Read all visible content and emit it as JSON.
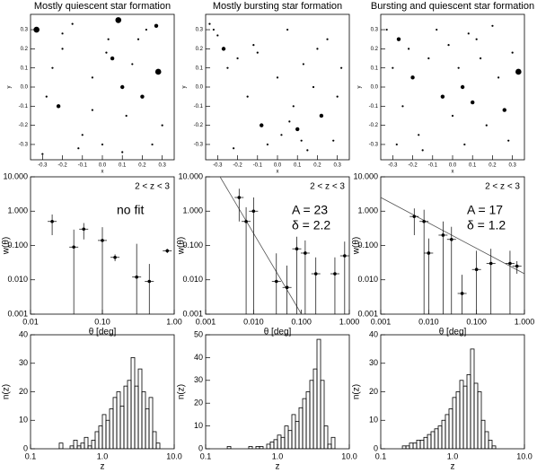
{
  "chart_data": [
    {
      "type": "scatter",
      "title": "Mostly quiescent star formation",
      "xlabel": "x",
      "ylabel": "y",
      "x": [
        -0.33,
        -0.3,
        -0.25,
        -0.22,
        -0.2,
        -0.15,
        -0.1,
        -0.05,
        0.0,
        0.03,
        0.05,
        0.08,
        0.1,
        0.12,
        0.15,
        0.2,
        0.22,
        0.25,
        0.28,
        0.3,
        -0.28,
        -0.12,
        0.02,
        0.18,
        -0.05,
        0.1,
        0.27,
        -0.2
      ],
      "values": [
        0.3,
        -0.35,
        0.1,
        -0.1,
        0.2,
        0.33,
        -0.25,
        0.05,
        -0.3,
        0.25,
        0.15,
        0.35,
        0.0,
        -0.15,
        0.12,
        -0.05,
        0.3,
        -0.3,
        0.08,
        -0.2,
        -0.05,
        -0.32,
        0.18,
        0.25,
        -0.12,
        -0.34,
        0.32,
        0.28
      ],
      "sizes": [
        3,
        1,
        1,
        2,
        1,
        1,
        1,
        1,
        1,
        1,
        2,
        3,
        2,
        1,
        1,
        2,
        1,
        1,
        3,
        1,
        1,
        1,
        1,
        1,
        1,
        1,
        2,
        1
      ],
      "xlim": [
        -0.36,
        0.36
      ],
      "ylim": [
        -0.38,
        0.38
      ],
      "xticks": [
        -0.3,
        -0.2,
        -0.1,
        {
          "value": 0,
          "label": "0.0"
        },
        0.1,
        0.2,
        0.3
      ],
      "yticks": [
        -0.3,
        -0.2,
        -0.1,
        {
          "value": 0,
          "label": "0.0"
        },
        0.1,
        0.2,
        0.3
      ]
    },
    {
      "type": "scatter",
      "title": "Mostly bursting star formation",
      "xlabel": "x",
      "ylabel": "y",
      "x": [
        -0.34,
        -0.32,
        -0.3,
        -0.27,
        -0.25,
        -0.2,
        -0.15,
        -0.12,
        -0.08,
        -0.05,
        0.0,
        0.02,
        0.05,
        0.08,
        0.1,
        0.13,
        0.15,
        0.18,
        0.2,
        0.22,
        0.25,
        0.28,
        0.3,
        0.32,
        -0.22,
        0.06,
        0.12,
        -0.1
      ],
      "values": [
        0.33,
        0.3,
        0.27,
        0.2,
        0.1,
        0.15,
        -0.05,
        0.22,
        -0.2,
        -0.3,
        0.05,
        -0.25,
        0.3,
        -0.1,
        -0.22,
        0.12,
        -0.33,
        0.0,
        0.2,
        -0.15,
        0.25,
        -0.28,
        -0.05,
        0.1,
        -0.32,
        -0.18,
        -0.28,
        0.18
      ],
      "sizes": [
        1,
        1,
        1,
        2,
        1,
        1,
        1,
        1,
        2,
        1,
        1,
        1,
        1,
        1,
        2,
        1,
        1,
        1,
        1,
        2,
        1,
        1,
        1,
        1,
        1,
        1,
        1,
        1
      ],
      "xlim": [
        -0.36,
        0.36
      ],
      "ylim": [
        -0.38,
        0.38
      ],
      "xticks": [
        -0.3,
        -0.2,
        -0.1,
        {
          "value": 0,
          "label": "0.0"
        },
        0.1,
        0.2,
        0.3
      ],
      "yticks": [
        -0.3,
        -0.2,
        -0.1,
        {
          "value": 0,
          "label": "0.0"
        },
        0.1,
        0.2,
        0.3
      ]
    },
    {
      "type": "scatter",
      "title": "Bursting and quiescent star formation",
      "xlabel": "x",
      "ylabel": "y",
      "x": [
        -0.33,
        -0.3,
        -0.27,
        -0.25,
        -0.22,
        -0.2,
        -0.17,
        -0.12,
        -0.08,
        -0.05,
        -0.02,
        0.0,
        0.03,
        0.06,
        0.08,
        0.1,
        0.14,
        0.17,
        0.2,
        0.23,
        0.26,
        0.3,
        0.33,
        -0.15,
        0.12,
        0.28,
        -0.28,
        0.05
      ],
      "values": [
        0.3,
        0.1,
        0.25,
        -0.1,
        0.2,
        0.05,
        -0.25,
        0.15,
        0.3,
        -0.05,
        0.22,
        -0.15,
        0.1,
        -0.3,
        0.28,
        -0.08,
        0.15,
        -0.2,
        0.32,
        0.05,
        -0.12,
        0.18,
        0.08,
        -0.33,
        0.25,
        -0.28,
        -0.3,
        0.0
      ],
      "sizes": [
        1,
        1,
        2,
        1,
        1,
        2,
        1,
        1,
        1,
        2,
        1,
        1,
        1,
        1,
        1,
        2,
        1,
        1,
        1,
        1,
        2,
        1,
        3,
        1,
        1,
        1,
        1,
        2
      ],
      "xlim": [
        -0.36,
        0.36
      ],
      "ylim": [
        -0.38,
        0.38
      ],
      "xticks": [
        -0.3,
        -0.2,
        -0.1,
        {
          "value": 0,
          "label": "0.0"
        },
        0.1,
        0.2,
        0.3
      ],
      "yticks": [
        -0.3,
        -0.2,
        -0.1,
        {
          "value": 0,
          "label": "0.0"
        },
        0.1,
        0.2,
        0.3
      ]
    },
    {
      "type": "errorbar",
      "xlabel": "θ  [deg]",
      "ylabel": "w(θ)",
      "log": true,
      "annotations": [
        "2 < z < 3",
        "no fit"
      ],
      "x": [
        0.02,
        0.04,
        0.055,
        0.1,
        0.15,
        0.3,
        0.45,
        0.8
      ],
      "values": [
        0.5,
        0.09,
        0.3,
        0.14,
        0.045,
        0.012,
        0.009,
        0.07
      ],
      "errors": [
        0.3,
        0.2,
        0.15,
        0.2,
        0.01,
        0.1,
        0.02,
        0.01
      ],
      "xlim": [
        0.01,
        1
      ],
      "ylim": [
        0.001,
        10
      ],
      "xticks": [
        0.01,
        {
          "value": 0.1,
          "label": "0.10"
        },
        {
          "value": 1,
          "label": "1.00"
        }
      ],
      "yticks": [
        {
          "value": 0.001,
          "label": "0.001"
        },
        {
          "value": 0.01,
          "label": "0.010"
        },
        {
          "value": 0.1,
          "label": "0.100"
        },
        {
          "value": 1,
          "label": "1.000"
        },
        {
          "value": 10,
          "label": "10.000"
        }
      ]
    },
    {
      "type": "errorbar",
      "xlabel": "θ  [deg]",
      "ylabel": "w(θ)",
      "log": true,
      "annotations": [
        "2 < z < 3",
        "A = 23",
        "δ = 2.2"
      ],
      "x": [
        0.005,
        0.007,
        0.01,
        0.03,
        0.05,
        0.08,
        0.12,
        0.2,
        0.5,
        0.8
      ],
      "values": [
        2.5,
        0.5,
        1.0,
        0.009,
        0.006,
        0.08,
        0.06,
        0.015,
        0.015,
        0.05
      ],
      "errors": [
        2,
        0.8,
        1.5,
        0.05,
        0.02,
        0.1,
        0.08,
        0.03,
        0.03,
        0.08
      ],
      "fit": {
        "x": [
          0.002,
          0.1
        ],
        "values": [
          10,
          0.001
        ]
      },
      "xlim": [
        0.001,
        1
      ],
      "ylim": [
        0.001,
        10
      ],
      "xticks": [
        {
          "value": 0.001,
          "label": "0.001"
        },
        {
          "value": 0.01,
          "label": "0.010"
        },
        {
          "value": 0.1,
          "label": "0.100"
        },
        {
          "value": 1,
          "label": "1.000"
        }
      ],
      "yticks": [
        {
          "value": 0.001,
          "label": "0.001"
        },
        {
          "value": 0.01,
          "label": "0.010"
        },
        {
          "value": 0.1,
          "label": "0.100"
        },
        {
          "value": 1,
          "label": "1.000"
        },
        {
          "value": 10,
          "label": "10.000"
        }
      ]
    },
    {
      "type": "errorbar",
      "xlabel": "θ  [deg]",
      "ylabel": "w(θ)",
      "log": true,
      "annotations": [
        "2 < z < 3",
        "A = 17",
        "δ = 1.2"
      ],
      "x": [
        0.005,
        0.008,
        0.01,
        0.02,
        0.03,
        0.05,
        0.1,
        0.2,
        0.5,
        0.7
      ],
      "values": [
        0.7,
        0.5,
        0.06,
        0.2,
        0.15,
        0.004,
        0.02,
        0.03,
        0.03,
        0.025
      ],
      "errors": [
        0.5,
        0.6,
        0.1,
        0.3,
        0.2,
        0.01,
        0.05,
        0.05,
        0.04,
        0.01
      ],
      "fit": {
        "x": [
          0.001,
          1
        ],
        "values": [
          2.5,
          0.015
        ]
      },
      "xlim": [
        0.001,
        1
      ],
      "ylim": [
        0.001,
        10
      ],
      "xticks": [
        {
          "value": 0.001,
          "label": "0.001"
        },
        {
          "value": 0.01,
          "label": "0.010"
        },
        {
          "value": 0.1,
          "label": "0.100"
        },
        {
          "value": 1,
          "label": "1.000"
        }
      ],
      "yticks": [
        {
          "value": 0.001,
          "label": "0.001"
        },
        {
          "value": 0.01,
          "label": "0.010"
        },
        {
          "value": 0.1,
          "label": "0.100"
        },
        {
          "value": 1,
          "label": "1.000"
        },
        {
          "value": 10,
          "label": "10.000"
        }
      ]
    },
    {
      "type": "histogram",
      "xlabel": "z",
      "ylabel": "n(z)",
      "log": true,
      "bins": [
        0.2,
        0.224,
        0.251,
        0.282,
        0.316,
        0.355,
        0.398,
        0.447,
        0.501,
        0.562,
        0.631,
        0.708,
        0.794,
        0.891,
        1.0,
        1.122,
        1.259,
        1.413,
        1.585,
        1.778,
        1.995,
        2.239,
        2.512,
        2.818,
        3.162,
        3.548,
        3.981,
        4.467,
        5.012,
        5.623,
        6.31,
        7.079,
        7.943
      ],
      "values": [
        0,
        0,
        2,
        0,
        0,
        1,
        3,
        1,
        2,
        4,
        1,
        3,
        6,
        8,
        12,
        10,
        14,
        18,
        20,
        15,
        22,
        24,
        32,
        22,
        28,
        20,
        14,
        18,
        6,
        2,
        0,
        0
      ],
      "xlim": [
        0.1,
        10
      ],
      "ylim": [
        0,
        40
      ],
      "xticks": [
        0.1,
        {
          "value": 1,
          "label": "1.0"
        },
        {
          "value": 10,
          "label": "10.0"
        }
      ],
      "yticks": [
        0,
        10,
        20,
        30,
        40
      ]
    },
    {
      "type": "histogram",
      "xlabel": "z",
      "ylabel": "n(z)",
      "log": true,
      "bins": [
        0.2,
        0.224,
        0.251,
        0.282,
        0.316,
        0.355,
        0.398,
        0.447,
        0.501,
        0.562,
        0.631,
        0.708,
        0.794,
        0.891,
        1.0,
        1.122,
        1.259,
        1.413,
        1.585,
        1.778,
        1.995,
        2.239,
        2.512,
        2.818,
        3.162,
        3.548,
        3.981,
        4.467,
        5.012,
        5.623,
        6.31,
        7.079,
        7.943
      ],
      "values": [
        1,
        0,
        0,
        0,
        0,
        0,
        1,
        0,
        1,
        1,
        0,
        2,
        3,
        4,
        6,
        5,
        10,
        8,
        15,
        12,
        18,
        22,
        25,
        30,
        35,
        48,
        30,
        10,
        2,
        5,
        0,
        0
      ],
      "xlim": [
        0.1,
        10
      ],
      "ylim": [
        0,
        50
      ],
      "xticks": [
        0.1,
        {
          "value": 1,
          "label": "1.0"
        },
        {
          "value": 10,
          "label": "10.0"
        }
      ],
      "yticks": [
        0,
        10,
        20,
        30,
        40,
        50
      ]
    },
    {
      "type": "histogram",
      "xlabel": "z",
      "ylabel": "n(z)",
      "log": true,
      "bins": [
        0.2,
        0.224,
        0.251,
        0.282,
        0.316,
        0.355,
        0.398,
        0.447,
        0.501,
        0.562,
        0.631,
        0.708,
        0.794,
        0.891,
        1.0,
        1.122,
        1.259,
        1.413,
        1.585,
        1.778,
        1.995,
        2.239,
        2.512,
        2.818,
        3.162,
        3.548,
        3.981,
        4.467,
        5.012,
        5.623,
        6.31,
        7.079,
        7.943
      ],
      "values": [
        1,
        1,
        2,
        2,
        3,
        3,
        4,
        5,
        6,
        7,
        8,
        10,
        12,
        14,
        18,
        20,
        24,
        22,
        26,
        35,
        23,
        20,
        10,
        6,
        3,
        1,
        0,
        0,
        0,
        0,
        0,
        0
      ],
      "xlim": [
        0.1,
        10
      ],
      "ylim": [
        0,
        40
      ],
      "xticks": [
        0.1,
        {
          "value": 1,
          "label": "1.0"
        },
        {
          "value": 10,
          "label": "10.0"
        }
      ],
      "yticks": [
        0,
        10,
        20,
        30,
        40
      ]
    }
  ]
}
